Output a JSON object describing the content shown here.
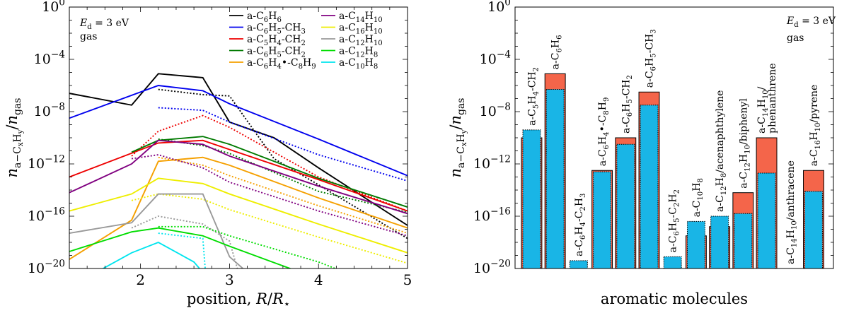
{
  "chart_data": [
    {
      "type": "line",
      "title": "",
      "annotation_lines": [
        "Ed = 3 eV",
        "gas"
      ],
      "xlabel": "position, R/R⋆",
      "ylabel": "n(a-CxHy)/n(gas)",
      "xlim": [
        1.2,
        5
      ],
      "ylim_log10": [
        -20,
        0
      ],
      "x_ticks": [
        2,
        3,
        4,
        5
      ],
      "x_tick_labels": [
        "2",
        "3",
        "4",
        "5"
      ],
      "y_ticks_log10": [
        0,
        -4,
        -8,
        -12,
        -16,
        -20
      ],
      "y_tick_labels": [
        "10^0",
        "10^−4",
        "10^−8",
        "10^−12",
        "10^−16",
        "10^−20"
      ],
      "legend_position": "top-right",
      "line_styles": {
        "solid": "Ed = 3 eV",
        "dotted": "second model variant"
      },
      "series": [
        {
          "name": "a-C6H6",
          "color": "#000000",
          "solid": [
            [
              1.2,
              -6.6
            ],
            [
              1.9,
              -7.5
            ],
            [
              2.2,
              -5.1
            ],
            [
              2.7,
              -5.4
            ],
            [
              3.0,
              -8.8
            ],
            [
              3.5,
              -10.0
            ],
            [
              4.0,
              -12.3
            ],
            [
              5.0,
              -16.7
            ]
          ],
          "dotted": [
            [
              2.2,
              -6.3
            ],
            [
              2.7,
              -6.7
            ],
            [
              3.0,
              -6.8
            ],
            [
              3.5,
              -11.6
            ],
            [
              4.0,
              -13.6
            ],
            [
              5.0,
              -17.7
            ]
          ]
        },
        {
          "name": "a-C6H5-CH3",
          "color": "#0000ee",
          "solid": [
            [
              1.2,
              -8.5
            ],
            [
              2.2,
              -6.0
            ],
            [
              2.7,
              -6.4
            ],
            [
              3.0,
              -7.4
            ],
            [
              4.0,
              -10.1
            ],
            [
              5.0,
              -12.9
            ]
          ],
          "dotted": [
            [
              2.2,
              -7.7
            ],
            [
              2.7,
              -7.9
            ],
            [
              3.0,
              -8.8
            ],
            [
              4.0,
              -11.3
            ],
            [
              5.0,
              -13.3
            ]
          ]
        },
        {
          "name": "a-C5H4-CH2",
          "color": "#ee0000",
          "solid": [
            [
              1.2,
              -13.0
            ],
            [
              2.2,
              -10.4
            ],
            [
              2.7,
              -10.2
            ],
            [
              3.0,
              -10.9
            ],
            [
              4.0,
              -13.2
            ],
            [
              5.0,
              -15.6
            ]
          ],
          "dotted": [
            [
              1.9,
              -11.4
            ],
            [
              2.2,
              -9.5
            ],
            [
              2.7,
              -8.3
            ],
            [
              3.0,
              -9.2
            ],
            [
              4.0,
              -13.0
            ],
            [
              5.0,
              -15.6
            ]
          ]
        },
        {
          "name": "a-C6H5-CH2",
          "color": "#007a00",
          "solid": [
            [
              1.9,
              -11.1
            ],
            [
              2.2,
              -10.2
            ],
            [
              2.7,
              -9.9
            ],
            [
              3.0,
              -10.5
            ],
            [
              4.0,
              -13.1
            ],
            [
              5.0,
              -15.3
            ]
          ],
          "dotted": [
            [
              2.2,
              -10.1
            ],
            [
              2.7,
              -10.6
            ],
            [
              3.0,
              -11.2
            ],
            [
              4.0,
              -14.1
            ],
            [
              5.0,
              -15.7
            ]
          ]
        },
        {
          "name": "a-C6H4•-C8H9",
          "color": "#f5a000",
          "solid": [
            [
              1.2,
              -19.3
            ],
            [
              1.9,
              -16.3
            ],
            [
              2.2,
              -11.8
            ],
            [
              2.7,
              -11.5
            ],
            [
              3.0,
              -12.1
            ],
            [
              4.0,
              -14.6
            ],
            [
              5.0,
              -16.9
            ]
          ],
          "dotted": [
            [
              2.2,
              -11.5
            ],
            [
              2.7,
              -12.1
            ],
            [
              3.0,
              -12.9
            ],
            [
              4.0,
              -15.2
            ],
            [
              5.0,
              -17.3
            ]
          ]
        },
        {
          "name": "a-C14H10",
          "color": "#800080",
          "solid": [
            [
              1.2,
              -14.2
            ],
            [
              1.9,
              -12.0
            ],
            [
              2.2,
              -10.2
            ],
            [
              2.7,
              -10.5
            ],
            [
              3.0,
              -11.4
            ],
            [
              4.0,
              -13.7
            ],
            [
              5.0,
              -15.8
            ]
          ],
          "dotted": [
            [
              1.9,
              -11.6
            ],
            [
              2.2,
              -11.3
            ],
            [
              2.7,
              -12.3
            ],
            [
              3.0,
              -13.4
            ],
            [
              4.0,
              -15.6
            ],
            [
              5.0,
              -17.5
            ]
          ]
        },
        {
          "name": "a-C16H10",
          "color": "#eeee00",
          "solid": [
            [
              1.2,
              -15.6
            ],
            [
              1.9,
              -14.3
            ],
            [
              2.2,
              -13.1
            ],
            [
              2.7,
              -13.5
            ],
            [
              3.0,
              -14.3
            ],
            [
              4.0,
              -16.6
            ],
            [
              5.0,
              -18.8
            ]
          ],
          "dotted": [
            [
              1.9,
              -14.8
            ],
            [
              2.2,
              -14.3
            ],
            [
              2.7,
              -14.7
            ],
            [
              3.0,
              -15.5
            ],
            [
              4.0,
              -17.6
            ],
            [
              5.0,
              -19.6
            ]
          ]
        },
        {
          "name": "a-C12H10",
          "color": "#999999",
          "solid": [
            [
              1.2,
              -17.3
            ],
            [
              1.9,
              -16.5
            ],
            [
              2.2,
              -14.3
            ],
            [
              2.7,
              -14.3
            ],
            [
              3.0,
              -19.1
            ],
            [
              3.2,
              -20.3
            ]
          ],
          "dotted": [
            [
              1.9,
              -16.9
            ],
            [
              2.2,
              -16.0
            ],
            [
              2.7,
              -16.6
            ],
            [
              3.0,
              -17.9
            ],
            [
              3.1,
              -20.3
            ]
          ]
        },
        {
          "name": "a-C12H8",
          "color": "#00dd00",
          "solid": [
            [
              1.2,
              -18.7
            ],
            [
              1.9,
              -17.2
            ],
            [
              2.2,
              -16.9
            ],
            [
              2.7,
              -17.5
            ],
            [
              3.0,
              -18.3
            ],
            [
              3.8,
              -20.3
            ]
          ],
          "dotted": [
            [
              2.2,
              -16.8
            ],
            [
              2.7,
              -16.8
            ],
            [
              3.0,
              -17.5
            ],
            [
              4.0,
              -19.5
            ],
            [
              4.3,
              -20.3
            ]
          ]
        },
        {
          "name": "a-C10H8",
          "color": "#00e5ee",
          "solid": [
            [
              1.5,
              -20.3
            ],
            [
              1.9,
              -18.8
            ],
            [
              2.2,
              -18.0
            ],
            [
              2.6,
              -19.5
            ],
            [
              2.7,
              -20.3
            ]
          ],
          "dotted": [
            [
              2.2,
              -17.3
            ],
            [
              2.7,
              -17.7
            ],
            [
              2.73,
              -20.3
            ]
          ]
        }
      ]
    },
    {
      "type": "bar",
      "title": "",
      "annotation_lines": [
        "Ed = 3 eV",
        "gas"
      ],
      "xlabel": "aromatic molecules",
      "ylabel": "n(a-CxHy)/n(gas)",
      "ylim_log10": [
        -20,
        0
      ],
      "y_ticks_log10": [
        0,
        -4,
        -8,
        -12,
        -16,
        -20
      ],
      "y_tick_labels": [
        "10^0",
        "10^−4",
        "10^−8",
        "10^−12",
        "10^−16",
        "10^−20"
      ],
      "red_color": "#f4654a",
      "blue_color": "#19b5e6",
      "categories": [
        "a-C5H4-CH2",
        "a-C6H6",
        "a-C6H4-C2H3",
        "a-C6H4•-C8H9",
        "a-C6H5-CH2",
        "a-C6H5-CH3",
        "a-C6H5-C2H2",
        "a-C10H8",
        "a-C12H8/acenaphthylene",
        "a-C12H10/biphenyl",
        "a-C14H10/phenanthrene",
        "a-C14H10/anthracene",
        "a-C16H10/pyrene"
      ],
      "category_label_lines": [
        [
          "a-C5H4-CH2"
        ],
        [
          "a-C6H6"
        ],
        [
          "a-C6H4-C2H3"
        ],
        [
          "a-C6H4•-C8H9"
        ],
        [
          "a-C6H5-CH2"
        ],
        [
          "a-C6H5-CH3"
        ],
        [
          "a-C6H5-C2H2"
        ],
        [
          "a-C10H8"
        ],
        [
          "a-C12H8/acenaphthylene"
        ],
        [
          "a-C12H10/biphenyl"
        ],
        [
          "a-C14H10/",
          "phenanthrene"
        ],
        [
          "a-C14H10/anthracene"
        ],
        [
          "a-C16H10/pyrene"
        ]
      ],
      "series": [
        {
          "name": "red (Ed = 3 eV, solid model)",
          "values_log10": [
            -10.0,
            -5.1,
            -20.0,
            -12.5,
            -10.0,
            -6.5,
            -20.0,
            -17.5,
            -16.8,
            -14.2,
            -10.0,
            null,
            -12.5
          ]
        },
        {
          "name": "blue (dotted model)",
          "values_log10": [
            -9.4,
            -6.3,
            -19.4,
            -12.6,
            -10.5,
            -7.5,
            -19.1,
            -16.4,
            -16.0,
            -15.8,
            -12.7,
            null,
            -14.1
          ]
        }
      ]
    }
  ]
}
